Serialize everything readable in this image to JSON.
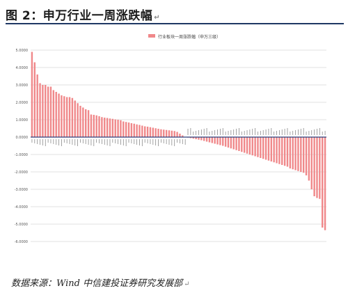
{
  "page": {
    "title": "图 2：申万行业一周涨跌幅",
    "source": "数据来源：Wind 中信建投证券研究发展部"
  },
  "colors": {
    "bar": "#f0888a",
    "axis": "#2c3e7a",
    "grid": "#d9d9d9",
    "title_rule": "#1f3864"
  },
  "chart_data": {
    "type": "bar",
    "legend": "行业板块一周涨跌幅（申万三级）",
    "legend_position": "top-center",
    "grid": true,
    "ylim": [
      -6,
      5
    ],
    "yticks": [
      {
        "v": 5,
        "label": "5.0000"
      },
      {
        "v": 4,
        "label": "4.0000"
      },
      {
        "v": 3,
        "label": "3.0000"
      },
      {
        "v": 2,
        "label": "2.0000"
      },
      {
        "v": 1,
        "label": "1.0000"
      },
      {
        "v": 0,
        "label": "0.0000"
      },
      {
        "v": -1,
        "label": "-1.0000"
      },
      {
        "v": -2,
        "label": "-2.0000"
      },
      {
        "v": -3,
        "label": "-3.0000"
      },
      {
        "v": -4,
        "label": "-4.0000"
      },
      {
        "v": -5,
        "label": "-5.0000"
      },
      {
        "v": -6,
        "label": "-6.0000"
      }
    ],
    "values": [
      4.9,
      4.3,
      3.6,
      3.1,
      3.0,
      3.0,
      2.9,
      2.9,
      2.7,
      2.6,
      2.5,
      2.4,
      2.35,
      2.3,
      2.3,
      2.25,
      2.1,
      1.95,
      1.8,
      1.7,
      1.6,
      1.55,
      1.3,
      1.28,
      1.25,
      1.2,
      1.15,
      1.12,
      1.1,
      1.07,
      1.05,
      1.02,
      1.0,
      0.97,
      0.9,
      0.87,
      0.84,
      0.8,
      0.77,
      0.73,
      0.7,
      0.66,
      0.62,
      0.6,
      0.57,
      0.54,
      0.51,
      0.48,
      0.45,
      0.43,
      0.41,
      0.39,
      0.37,
      0.35,
      0.3,
      0.2,
      0.1,
      0.02,
      -0.03,
      -0.06,
      -0.09,
      -0.12,
      -0.15,
      -0.18,
      -0.22,
      -0.26,
      -0.3,
      -0.34,
      -0.38,
      -0.42,
      -0.46,
      -0.5,
      -0.55,
      -0.6,
      -0.65,
      -0.7,
      -0.75,
      -0.8,
      -0.85,
      -0.9,
      -0.95,
      -1.0,
      -1.05,
      -1.1,
      -1.15,
      -1.2,
      -1.25,
      -1.3,
      -1.35,
      -1.4,
      -1.45,
      -1.5,
      -1.55,
      -1.6,
      -1.65,
      -1.7,
      -1.8,
      -1.85,
      -1.9,
      -1.95,
      -2.0,
      -2.05,
      -2.2,
      -2.5,
      -3.0,
      -3.4,
      -3.5,
      -3.55,
      -5.2,
      -5.35
    ]
  }
}
